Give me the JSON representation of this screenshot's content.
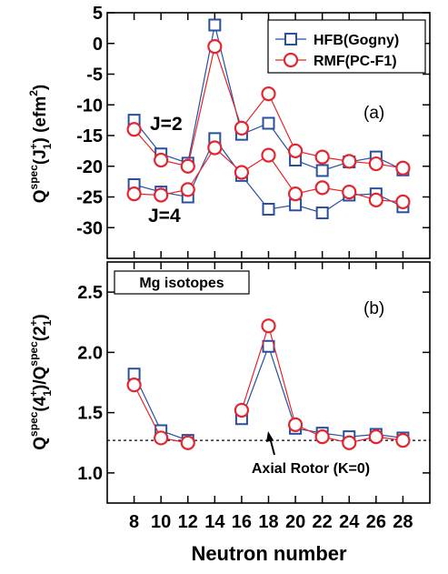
{
  "chart_data": [
    {
      "type": "line",
      "panel_label": "(a)",
      "ylabel": {
        "base": "Q",
        "sup1": "spec",
        "mid": "(J",
        "sub": "1",
        "sup2": "+",
        "end": ") (efm",
        "sup3": "2",
        "close": ")"
      },
      "xlim": [
        6,
        30
      ],
      "ylim": [
        -35,
        5
      ],
      "yticks": [
        5,
        0,
        -5,
        -10,
        -15,
        -20,
        -25,
        -30
      ],
      "legend": {
        "position": "top-right",
        "entries": [
          "HFB(Gogny)",
          "RMF(PC-F1)"
        ]
      },
      "annotations": [
        "J=2",
        "J=4"
      ],
      "x": [
        8,
        10,
        12,
        14,
        16,
        18,
        20,
        22,
        24,
        26,
        28
      ],
      "series": [
        {
          "name": "HFB(Gogny)",
          "group": "J=2",
          "color": "#2a4fa0",
          "marker": "square",
          "values": [
            -12.5,
            -18.0,
            -19.5,
            3.0,
            -14.8,
            -13.0,
            -19.0,
            -20.7,
            -19.3,
            -18.5,
            -20.6
          ]
        },
        {
          "name": "RMF(PC-F1)",
          "group": "J=2",
          "color": "#e3262e",
          "marker": "circle",
          "values": [
            -14.0,
            -19.0,
            -20.0,
            -0.5,
            -13.8,
            -8.2,
            -17.5,
            -18.5,
            -19.2,
            -19.6,
            -20.3
          ]
        },
        {
          "name": "HFB(Gogny)",
          "group": "J=4",
          "color": "#2a4fa0",
          "marker": "square",
          "values": [
            -23.0,
            -24.2,
            -25.0,
            -15.5,
            -21.5,
            -27.0,
            -26.3,
            -27.6,
            -24.7,
            -24.5,
            -26.6
          ]
        },
        {
          "name": "RMF(PC-F1)",
          "group": "J=4",
          "color": "#e3262e",
          "marker": "circle",
          "values": [
            -24.5,
            -24.7,
            -23.8,
            -17.0,
            -21.0,
            -18.2,
            -24.5,
            -23.5,
            -24.2,
            -25.5,
            -25.8
          ]
        }
      ]
    },
    {
      "type": "line",
      "panel_label": "(b)",
      "ylabel": {
        "base": "Q",
        "sup1": "spec",
        "num": "(4",
        "sub1": "1",
        "plus1": "+",
        "mid": ")/Q",
        "sup2": "spec",
        "den": "(2",
        "sub2": "1",
        "plus2": "+",
        "close": ")"
      },
      "xlabel": "Neutron number",
      "xlim": [
        6,
        30
      ],
      "ylim": [
        0.75,
        2.75
      ],
      "yticks": [
        1.0,
        1.5,
        2.0,
        2.5
      ],
      "xticks": [
        8,
        10,
        12,
        14,
        16,
        18,
        20,
        22,
        24,
        26,
        28
      ],
      "box_label": "Mg isotopes",
      "reference_line": {
        "value": 1.27,
        "label": "Axial Rotor (K=0)"
      },
      "x": [
        8,
        10,
        12,
        16,
        18,
        20,
        22,
        24,
        26,
        28
      ],
      "segments": [
        [
          0,
          2
        ],
        [
          3,
          9
        ]
      ],
      "series": [
        {
          "name": "HFB(Gogny)",
          "color": "#2a4fa0",
          "marker": "square",
          "values": [
            1.82,
            1.35,
            1.27,
            1.45,
            2.05,
            1.37,
            1.33,
            1.3,
            1.32,
            1.29
          ]
        },
        {
          "name": "RMF(PC-F1)",
          "color": "#e3262e",
          "marker": "circle",
          "values": [
            1.73,
            1.29,
            1.25,
            1.52,
            2.22,
            1.4,
            1.3,
            1.25,
            1.3,
            1.27
          ]
        }
      ]
    }
  ]
}
